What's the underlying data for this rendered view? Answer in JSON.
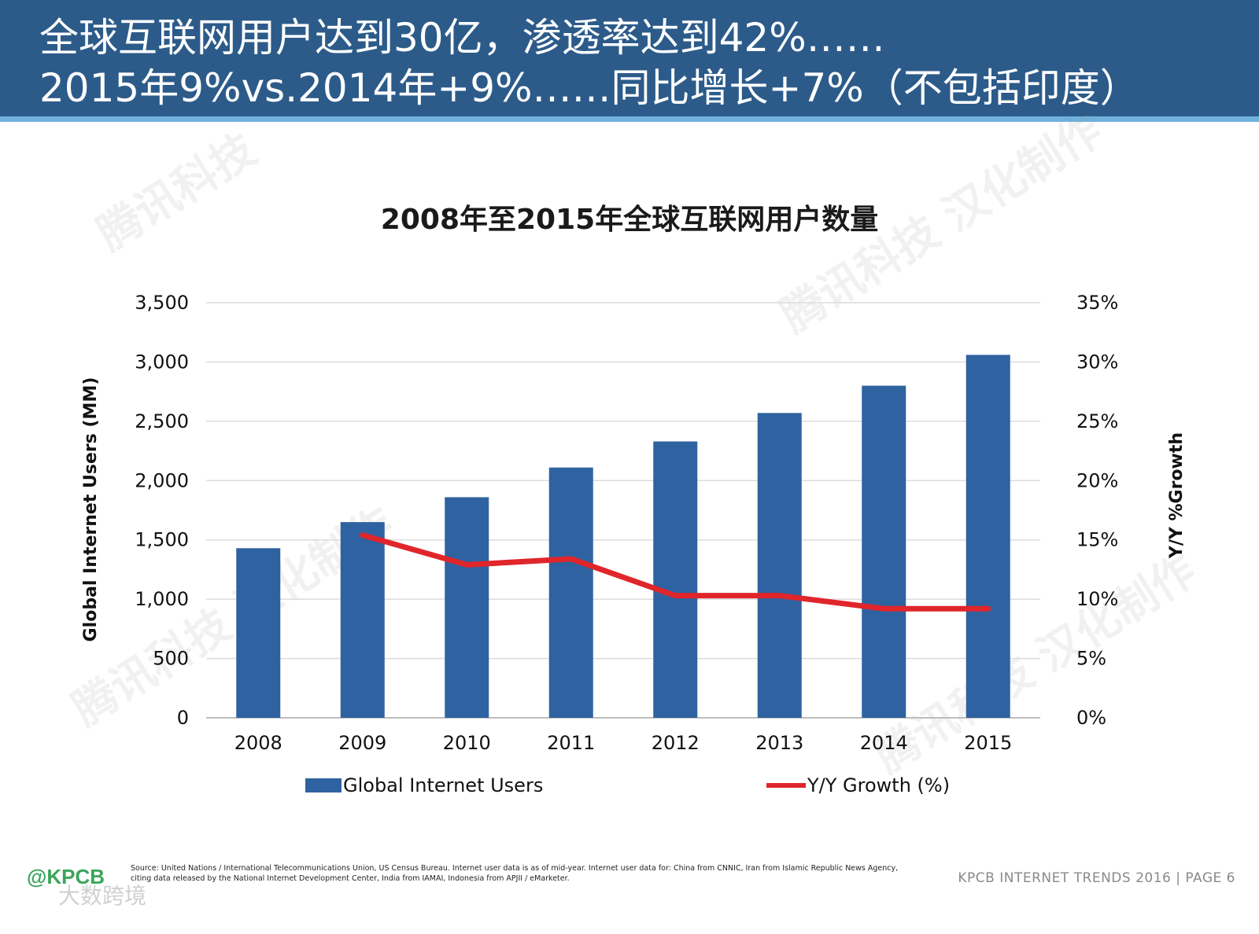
{
  "header": {
    "line1": "全球互联网用户达到30亿，渗透率达到42%……",
    "line2": "2015年9%vs.2014年+9%……同比增长+7%（不包括印度）"
  },
  "chart_data": {
    "type": "bar",
    "title": "2008年至2015年全球互联网用户数量",
    "categories": [
      "2008",
      "2009",
      "2010",
      "2011",
      "2012",
      "2013",
      "2014",
      "2015"
    ],
    "series": [
      {
        "name": "Global Internet Users",
        "axis": "left",
        "kind": "bar",
        "color": "#2f62a0",
        "values": [
          1430,
          1650,
          1860,
          2110,
          2330,
          2570,
          2800,
          3060
        ]
      },
      {
        "name": "Y/Y Growth (%)",
        "axis": "right",
        "kind": "line",
        "color": "#e0262b",
        "values": [
          null,
          15.4,
          12.9,
          13.4,
          10.3,
          10.3,
          9.2,
          9.2
        ]
      }
    ],
    "ylabel": "Global Internet Users (MM)",
    "y2label": "Y/Y %Growth",
    "ylim": [
      0,
      3500
    ],
    "y2lim": [
      0,
      35
    ],
    "yticks": [
      "0",
      "500",
      "1,000",
      "1,500",
      "2,000",
      "2,500",
      "3,000",
      "3,500"
    ],
    "y2ticks": [
      "0%",
      "5%",
      "10%",
      "15%",
      "20%",
      "25%",
      "30%",
      "35%"
    ],
    "grid": true,
    "legend": "bottom"
  },
  "legend": {
    "users_label": "Global Internet Users",
    "growth_label": "Y/Y Growth (%)"
  },
  "footer": {
    "source_text": "Source: United Nations / International Telecommunications Union, US Census Bureau. Internet user data is as of mid-year. Internet user data for: China from CNNIC, Iran from Islamic Republic News Agency, citing data released by the National Internet Development Center, India from IAMAI, Indonesia from APJII / eMarketer.",
    "logo_text": "KPCB",
    "right_text": "KPCB INTERNET TRENDS 2016  |  PAGE 6",
    "watermark_text": "大数跨境"
  },
  "colors": {
    "header_bg": "#2c5b8a",
    "header_accent": "#6fb0dc",
    "bar": "#2f62a0",
    "line": "#e0262b"
  }
}
